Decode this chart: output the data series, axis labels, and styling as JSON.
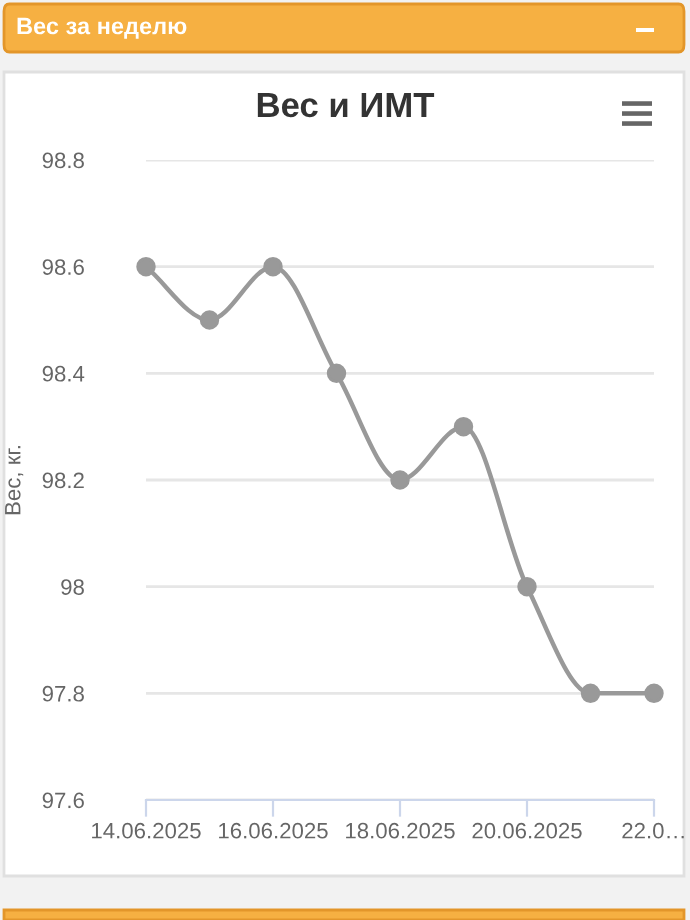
{
  "chart_data": {
    "type": "line",
    "title": "Вес и ИМТ",
    "ylabel": "Вес, кг.",
    "annotations": [
      "Вес за неделю"
    ],
    "categories": [
      "14.06.2025",
      null,
      "16.06.2025",
      null,
      "18.06.2025",
      null,
      "20.06.2025",
      null,
      "22.0…"
    ],
    "series": [
      {
        "color": "#999999",
        "values": [
          98.6,
          98.5,
          98.6,
          98.4,
          98.2,
          98.3,
          98.0,
          97.8,
          97.8
        ]
      }
    ],
    "ylim": [
      97.6,
      98.8
    ],
    "yticks": [
      97.6,
      97.8,
      98,
      98.2,
      98.4,
      98.6,
      98.8
    ],
    "grid": "y",
    "marker": "circle",
    "line_style": "solid"
  }
}
